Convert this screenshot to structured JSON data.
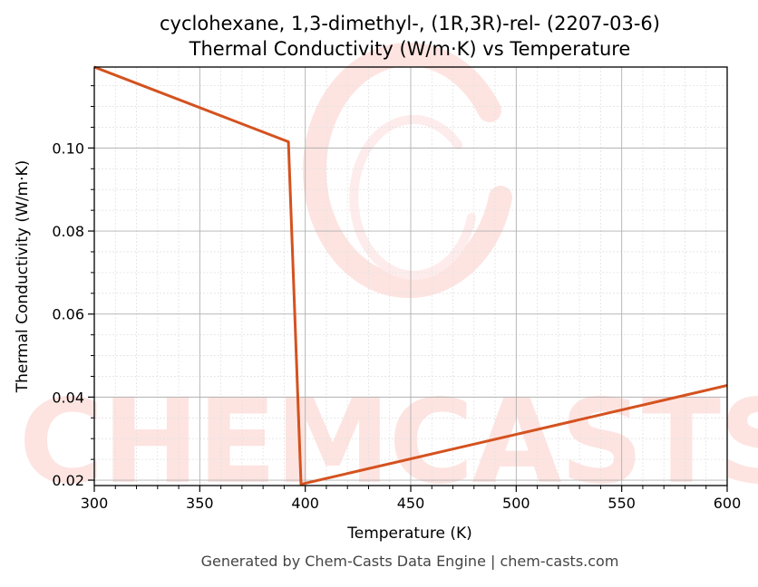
{
  "title_line1": "cyclohexane, 1,3-dimethyl-, (1R,3R)-rel- (2207-03-6)",
  "title_line2": "Thermal Conductivity (W/m·K) vs Temperature",
  "footer": "Generated by Chem-Casts Data Engine | chem-casts.com",
  "watermark": "CHEMCASTS",
  "colors": {
    "series": "#d4521f",
    "watermark": "#fde4e1",
    "grid_major": "#b0b0b0",
    "grid_minor": "#e2e2e2"
  },
  "chart_data": {
    "type": "line",
    "xlabel": "Temperature (K)",
    "ylabel": "Thermal Conductivity (W/m·K)",
    "xlim": [
      300,
      600
    ],
    "ylim": [
      0.0187,
      0.1195
    ],
    "xticks": [
      300,
      350,
      400,
      450,
      500,
      550,
      600
    ],
    "xtick_labels": [
      "300",
      "350",
      "400",
      "450",
      "500",
      "550",
      "600"
    ],
    "yticks": [
      0.02,
      0.04,
      0.06,
      0.08,
      0.1
    ],
    "ytick_labels": [
      "0.02",
      "0.04",
      "0.06",
      "0.08",
      "0.10"
    ],
    "grid": true,
    "minor_grid": true,
    "series": [
      {
        "x": [
          300,
          392,
          398,
          600
        ],
        "y": [
          0.1195,
          0.1015,
          0.019,
          0.0428
        ]
      }
    ]
  }
}
